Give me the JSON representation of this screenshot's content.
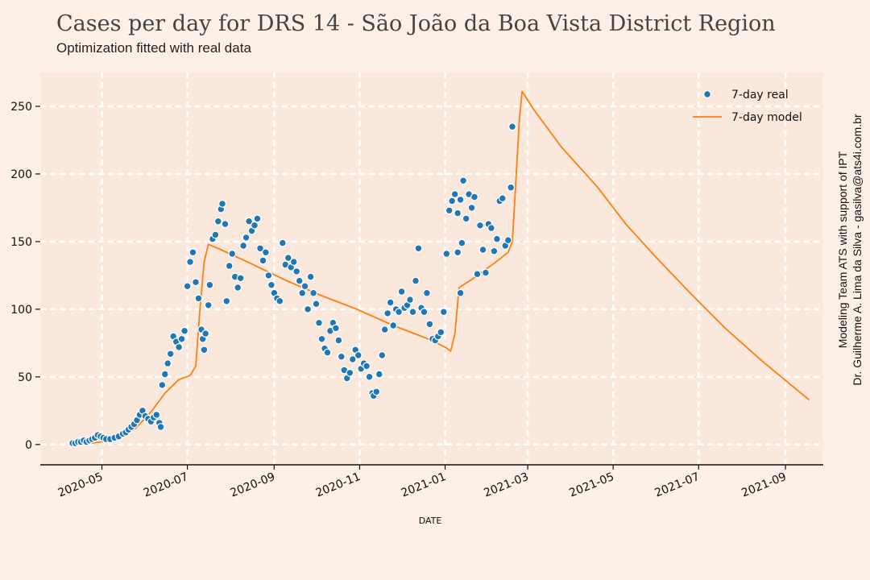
{
  "header": {
    "title": "Cases per day for DRS 14 - São João da Boa Vista District Region",
    "subtitle": "Optimization fitted with real data"
  },
  "credits": {
    "line1": "Modeling Team ATS with support of IPT",
    "line2": "Dr. Guilherme A. Lima da Silva - gasilva@ats4i.com.br"
  },
  "colors": {
    "background": "#fdf0e6",
    "plot_background": "#fae8dc",
    "real": "#1f77b4",
    "model": "#ff7f0e"
  },
  "chart_data": {
    "type": "scatter",
    "title": "Cases per day for DRS 14 - São João da Boa Vista District Region",
    "xlabel": "DATE",
    "ylabel": "",
    "x_type": "date",
    "xlim": [
      "2020-03-18",
      "2021-09-28"
    ],
    "ylim": [
      -15,
      275
    ],
    "yticks": [
      0,
      50,
      100,
      150,
      200,
      250
    ],
    "xticks": [
      "2020-05-01",
      "2020-07-01",
      "2020-09-01",
      "2020-11-01",
      "2021-01-01",
      "2021-03-01",
      "2021-05-01",
      "2021-07-01",
      "2021-09-01"
    ],
    "xtick_labels": [
      "2020-05",
      "2020-07",
      "2020-09",
      "2020-11",
      "2021-01",
      "2021-03",
      "2021-05",
      "2021-07",
      "2021-09"
    ],
    "grid": true,
    "legend_position": "top-right",
    "series": [
      {
        "name": "7-day real",
        "kind": "scatter",
        "points": [
          [
            "2020-04-10",
            1
          ],
          [
            "2020-04-12",
            1
          ],
          [
            "2020-04-14",
            2
          ],
          [
            "2020-04-16",
            2
          ],
          [
            "2020-04-18",
            3
          ],
          [
            "2020-04-20",
            2
          ],
          [
            "2020-04-22",
            3
          ],
          [
            "2020-04-24",
            4
          ],
          [
            "2020-04-26",
            5
          ],
          [
            "2020-04-28",
            7
          ],
          [
            "2020-04-30",
            6
          ],
          [
            "2020-05-02",
            5
          ],
          [
            "2020-05-04",
            4
          ],
          [
            "2020-05-07",
            4
          ],
          [
            "2020-05-10",
            5
          ],
          [
            "2020-05-13",
            6
          ],
          [
            "2020-05-16",
            8
          ],
          [
            "2020-05-18",
            9
          ],
          [
            "2020-05-20",
            11
          ],
          [
            "2020-05-22",
            13
          ],
          [
            "2020-05-24",
            15
          ],
          [
            "2020-05-26",
            18
          ],
          [
            "2020-05-28",
            22
          ],
          [
            "2020-05-30",
            25
          ],
          [
            "2020-06-01",
            21
          ],
          [
            "2020-06-03",
            19
          ],
          [
            "2020-06-05",
            17
          ],
          [
            "2020-06-07",
            20
          ],
          [
            "2020-06-09",
            22
          ],
          [
            "2020-06-11",
            16
          ],
          [
            "2020-06-12",
            13
          ],
          [
            "2020-06-13",
            44
          ],
          [
            "2020-06-15",
            52
          ],
          [
            "2020-06-17",
            60
          ],
          [
            "2020-06-19",
            67
          ],
          [
            "2020-06-21",
            80
          ],
          [
            "2020-06-23",
            76
          ],
          [
            "2020-06-25",
            72
          ],
          [
            "2020-06-27",
            78
          ],
          [
            "2020-06-29",
            84
          ],
          [
            "2020-07-01",
            117
          ],
          [
            "2020-07-03",
            135
          ],
          [
            "2020-07-05",
            142
          ],
          [
            "2020-07-07",
            120
          ],
          [
            "2020-07-09",
            108
          ],
          [
            "2020-07-11",
            85
          ],
          [
            "2020-07-12",
            78
          ],
          [
            "2020-07-13",
            70
          ],
          [
            "2020-07-14",
            82
          ],
          [
            "2020-07-16",
            103
          ],
          [
            "2020-07-17",
            118
          ],
          [
            "2020-07-19",
            152
          ],
          [
            "2020-07-21",
            155
          ],
          [
            "2020-07-23",
            165
          ],
          [
            "2020-07-25",
            174
          ],
          [
            "2020-07-26",
            178
          ],
          [
            "2020-07-28",
            163
          ],
          [
            "2020-07-29",
            106
          ],
          [
            "2020-07-31",
            132
          ],
          [
            "2020-08-02",
            141
          ],
          [
            "2020-08-04",
            124
          ],
          [
            "2020-08-06",
            116
          ],
          [
            "2020-08-08",
            123
          ],
          [
            "2020-08-10",
            147
          ],
          [
            "2020-08-12",
            153
          ],
          [
            "2020-08-14",
            165
          ],
          [
            "2020-08-16",
            158
          ],
          [
            "2020-08-18",
            162
          ],
          [
            "2020-08-20",
            167
          ],
          [
            "2020-08-22",
            145
          ],
          [
            "2020-08-24",
            136
          ],
          [
            "2020-08-26",
            142
          ],
          [
            "2020-08-28",
            125
          ],
          [
            "2020-08-30",
            118
          ],
          [
            "2020-09-01",
            112
          ],
          [
            "2020-09-03",
            108
          ],
          [
            "2020-09-05",
            106
          ],
          [
            "2020-09-07",
            149
          ],
          [
            "2020-09-09",
            133
          ],
          [
            "2020-09-11",
            138
          ],
          [
            "2020-09-13",
            131
          ],
          [
            "2020-09-15",
            135
          ],
          [
            "2020-09-17",
            128
          ],
          [
            "2020-09-19",
            121
          ],
          [
            "2020-09-21",
            112
          ],
          [
            "2020-09-23",
            117
          ],
          [
            "2020-09-25",
            100
          ],
          [
            "2020-09-27",
            124
          ],
          [
            "2020-09-29",
            112
          ],
          [
            "2020-10-01",
            104
          ],
          [
            "2020-10-03",
            90
          ],
          [
            "2020-10-05",
            78
          ],
          [
            "2020-10-07",
            71
          ],
          [
            "2020-10-09",
            68
          ],
          [
            "2020-10-11",
            84
          ],
          [
            "2020-10-13",
            90
          ],
          [
            "2020-10-15",
            86
          ],
          [
            "2020-10-17",
            77
          ],
          [
            "2020-10-19",
            65
          ],
          [
            "2020-10-21",
            55
          ],
          [
            "2020-10-23",
            49
          ],
          [
            "2020-10-25",
            53
          ],
          [
            "2020-10-27",
            63
          ],
          [
            "2020-10-29",
            70
          ],
          [
            "2020-10-31",
            66
          ],
          [
            "2020-11-02",
            56
          ],
          [
            "2020-11-04",
            60
          ],
          [
            "2020-11-06",
            58
          ],
          [
            "2020-11-08",
            50
          ],
          [
            "2020-11-10",
            38
          ],
          [
            "2020-11-11",
            36
          ],
          [
            "2020-11-13",
            39
          ],
          [
            "2020-11-15",
            52
          ],
          [
            "2020-11-17",
            66
          ],
          [
            "2020-11-19",
            85
          ],
          [
            "2020-11-21",
            97
          ],
          [
            "2020-11-23",
            105
          ],
          [
            "2020-11-25",
            88
          ],
          [
            "2020-11-27",
            100
          ],
          [
            "2020-11-29",
            98
          ],
          [
            "2020-12-01",
            113
          ],
          [
            "2020-12-03",
            101
          ],
          [
            "2020-12-05",
            103
          ],
          [
            "2020-12-07",
            107
          ],
          [
            "2020-12-09",
            98
          ],
          [
            "2020-12-11",
            121
          ],
          [
            "2020-12-13",
            145
          ],
          [
            "2020-12-15",
            101
          ],
          [
            "2020-12-17",
            98
          ],
          [
            "2020-12-19",
            112
          ],
          [
            "2020-12-21",
            89
          ],
          [
            "2020-12-23",
            78
          ],
          [
            "2020-12-25",
            77
          ],
          [
            "2020-12-27",
            80
          ],
          [
            "2020-12-29",
            83
          ],
          [
            "2020-12-31",
            98
          ],
          [
            "2021-01-02",
            141
          ],
          [
            "2021-01-04",
            173
          ],
          [
            "2021-01-06",
            180
          ],
          [
            "2021-01-08",
            185
          ],
          [
            "2021-01-10",
            171
          ],
          [
            "2021-01-12",
            181
          ],
          [
            "2021-01-14",
            195
          ],
          [
            "2021-01-16",
            167
          ],
          [
            "2021-01-18",
            185
          ],
          [
            "2021-01-20",
            175
          ],
          [
            "2021-01-22",
            183
          ],
          [
            "2021-01-24",
            126
          ],
          [
            "2021-01-26",
            162
          ],
          [
            "2021-01-28",
            144
          ],
          [
            "2021-01-30",
            127
          ],
          [
            "2021-02-01",
            163
          ],
          [
            "2021-02-03",
            160
          ],
          [
            "2021-02-05",
            143
          ],
          [
            "2021-02-07",
            152
          ],
          [
            "2021-02-09",
            180
          ],
          [
            "2021-02-11",
            182
          ],
          [
            "2021-02-13",
            147
          ],
          [
            "2021-02-15",
            151
          ],
          [
            "2021-02-17",
            190
          ],
          [
            "2021-02-18",
            235
          ],
          [
            "2021-01-12",
            112
          ],
          [
            "2021-01-10",
            142
          ],
          [
            "2021-01-13",
            149
          ]
        ]
      },
      {
        "name": "7-day model",
        "kind": "line",
        "points": [
          [
            "2020-04-08",
            0
          ],
          [
            "2020-04-20",
            0.5
          ],
          [
            "2020-05-01",
            2
          ],
          [
            "2020-05-15",
            6
          ],
          [
            "2020-05-25",
            12
          ],
          [
            "2020-06-05",
            24
          ],
          [
            "2020-06-15",
            38
          ],
          [
            "2020-06-25",
            48
          ],
          [
            "2020-07-03",
            51
          ],
          [
            "2020-07-07",
            58
          ],
          [
            "2020-07-10",
            100
          ],
          [
            "2020-07-13",
            135
          ],
          [
            "2020-07-16",
            148
          ],
          [
            "2020-07-25",
            144
          ],
          [
            "2020-08-15",
            134
          ],
          [
            "2020-09-10",
            121
          ],
          [
            "2020-10-05",
            110
          ],
          [
            "2020-10-30",
            100
          ],
          [
            "2020-11-25",
            88
          ],
          [
            "2020-12-20",
            78
          ],
          [
            "2021-01-01",
            72
          ],
          [
            "2021-01-05",
            69
          ],
          [
            "2021-01-08",
            82
          ],
          [
            "2021-01-11",
            116
          ],
          [
            "2021-01-20",
            122
          ],
          [
            "2021-02-05",
            134
          ],
          [
            "2021-02-15",
            142
          ],
          [
            "2021-02-18",
            150
          ],
          [
            "2021-02-20",
            185
          ],
          [
            "2021-02-23",
            240
          ],
          [
            "2021-02-25",
            261
          ],
          [
            "2021-03-05",
            248
          ],
          [
            "2021-03-25",
            220
          ],
          [
            "2021-04-20",
            190
          ],
          [
            "2021-05-10",
            163
          ],
          [
            "2021-06-01",
            138
          ],
          [
            "2021-06-25",
            112
          ],
          [
            "2021-07-20",
            86
          ],
          [
            "2021-08-15",
            62
          ],
          [
            "2021-09-05",
            44
          ],
          [
            "2021-09-18",
            33
          ]
        ]
      }
    ]
  }
}
